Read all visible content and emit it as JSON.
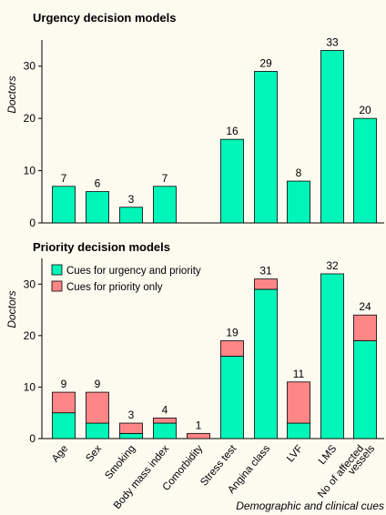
{
  "colors": {
    "urgency_fill": "#00f5b8",
    "priority_fill": "#ff8686",
    "background": "#fdfaf0",
    "stroke": "#000000"
  },
  "chart_data": [
    {
      "type": "bar",
      "title": "Urgency decision models",
      "ylabel": "Doctors",
      "ylim": [
        0,
        35
      ],
      "yticks": [
        0,
        10,
        20,
        30
      ],
      "categories": [
        "Age",
        "Sex",
        "Smoking",
        "Body mass index",
        "Comorbidity",
        "Stress test",
        "Angina class",
        "LVF",
        "LMS",
        "No of affected vessels"
      ],
      "values": [
        7,
        6,
        3,
        7,
        null,
        16,
        29,
        8,
        33,
        20
      ],
      "labels": [
        "7",
        "6",
        "3",
        "7",
        "",
        "16",
        "29",
        "8",
        "33",
        "20"
      ]
    },
    {
      "type": "bar",
      "stacked": true,
      "title": "Priority decision models",
      "ylabel": "Doctors",
      "xlabel": "Demographic and clinical cues",
      "ylim": [
        0,
        35
      ],
      "yticks": [
        0,
        10,
        20,
        30
      ],
      "legend_position": "top-left",
      "categories": [
        "Age",
        "Sex",
        "Smoking",
        "Body mass index",
        "Comorbidity",
        "Stress test",
        "Angina class",
        "LVF",
        "LMS",
        "No of affected vessels"
      ],
      "series": [
        {
          "name": "Cues for urgency and priority",
          "values": [
            5,
            3,
            1,
            3,
            0,
            16,
            29,
            3,
            32,
            19
          ]
        },
        {
          "name": "Cues for priority only",
          "values": [
            4,
            6,
            2,
            1,
            1,
            3,
            2,
            8,
            0,
            5
          ]
        }
      ],
      "totals": [
        "9",
        "9",
        "3",
        "4",
        "1",
        "19",
        "31",
        "11",
        "32",
        "24"
      ],
      "tick_labels": [
        "Age",
        "Sex",
        "Smoking",
        "Body mass index",
        "Comorbidity",
        "Stress test",
        "Angina class",
        "LVF",
        "LMS",
        "No of affected",
        "vessels"
      ]
    }
  ]
}
